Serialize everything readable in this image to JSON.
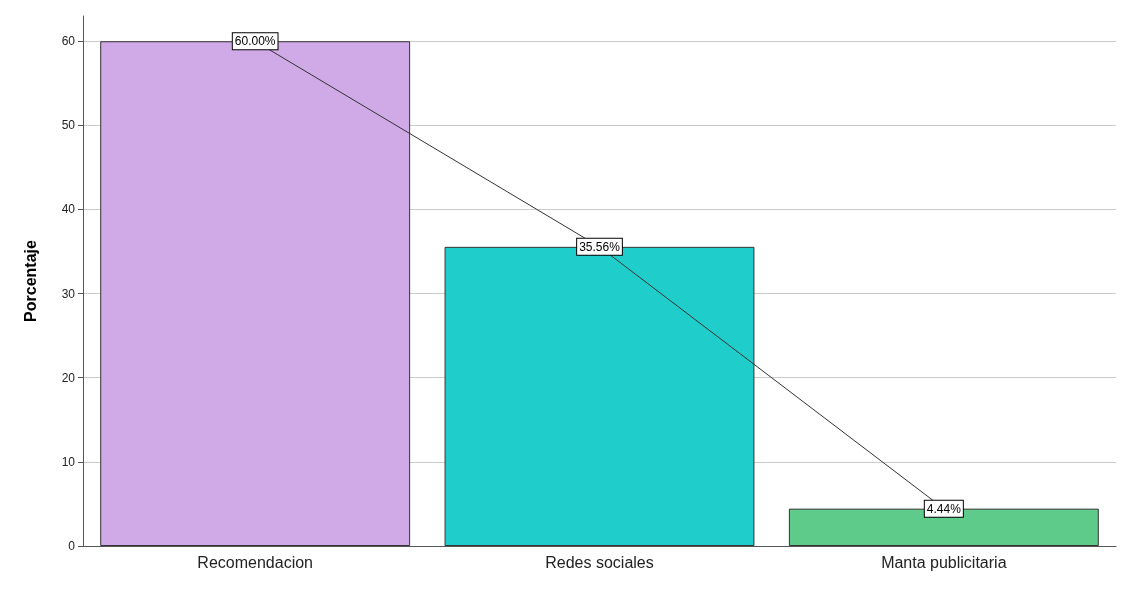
{
  "chart_data": {
    "type": "bar",
    "ylabel": "Porcentaje",
    "categories": [
      "Recomendacion",
      "Redes sociales",
      "Manta publicitaria"
    ],
    "ylim": [
      0,
      63
    ],
    "yticks": [
      0,
      10,
      20,
      30,
      40,
      50,
      60
    ],
    "grid": "y",
    "series": [
      {
        "values": [
          60.0,
          35.56,
          4.44
        ],
        "colors": [
          "#cfaae6",
          "#1fcecb",
          "#5ecb8a"
        ]
      },
      {
        "type": "line",
        "color": "#333333",
        "values": [
          60.0,
          35.56,
          4.44
        ],
        "value_labels": [
          "60.00%",
          "35.56%",
          "4.44%"
        ]
      }
    ]
  }
}
